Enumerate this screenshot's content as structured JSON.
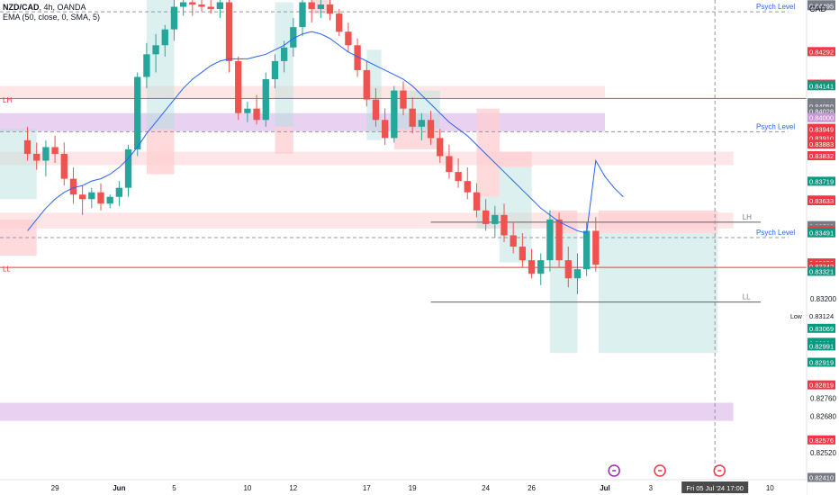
{
  "header": {
    "symbol": "NZD/CAD",
    "interval": ", 4h, ",
    "exchange": "OANDA",
    "indicator": "EMA (50, close, 0, SMA, 5)",
    "currency": "CAD"
  },
  "colors": {
    "up": "#26a69a",
    "down": "#ef5350",
    "ema": "#2962ff",
    "price_red": "#f23645",
    "price_green": "#089981",
    "zone_purple": "#d9b3e8",
    "zone_pink": "#ffd6d6",
    "box_green": "#b2dfdb",
    "box_red": "#ffcdd2"
  },
  "chart_data": {
    "type": "candlestick",
    "title": "NZD/CAD, 4h, OANDA",
    "ylim": [
      0.824,
      0.8452
    ],
    "xlim": [
      -3,
      85
    ],
    "x_ticks": [
      {
        "i": 3,
        "label": "29"
      },
      {
        "i": 10,
        "label": "Jun",
        "bold": true
      },
      {
        "i": 16,
        "label": "5"
      },
      {
        "i": 24,
        "label": "10"
      },
      {
        "i": 29,
        "label": "12"
      },
      {
        "i": 37,
        "label": "17"
      },
      {
        "i": 42,
        "label": "19"
      },
      {
        "i": 50,
        "label": "24"
      },
      {
        "i": 55,
        "label": "26"
      },
      {
        "i": 63,
        "label": "Jul",
        "bold": true
      },
      {
        "i": 68,
        "label": "3"
      },
      {
        "i": 81,
        "label": "10"
      }
    ],
    "crosshair": {
      "i": 75,
      "label": "Fri 05 Jul '24   17:00"
    },
    "y_ticks": [
      "0.83200",
      "0.82760",
      "0.82680",
      "0.82520"
    ],
    "axis_labels": [
      {
        "v": 0.84499,
        "t": "0.84499",
        "c": "#787b86"
      },
      {
        "v": 0.84495,
        "t": "0.84495",
        "c": "#787b86"
      },
      {
        "v": 0.84292,
        "t": "0.84292",
        "c": "#f23645"
      },
      {
        "v": 0.84148,
        "t": "0.84148",
        "c": "#f23645"
      },
      {
        "v": 0.84141,
        "t": "0.84141",
        "c": "#089981"
      },
      {
        "v": 0.84066,
        "t": "0.84066",
        "c": "#787b86"
      },
      {
        "v": 0.84063,
        "t": "0.84063",
        "c": "#787b86"
      },
      {
        "v": 0.84062,
        "t": "0.84062",
        "c": "#787b86"
      },
      {
        "v": 0.8405,
        "t": "0.84050",
        "c": "#787b86"
      },
      {
        "v": 0.84028,
        "t": "0.84028",
        "c": "#787b86"
      },
      {
        "v": 0.84,
        "t": "0.84000",
        "c": "#ce93d8"
      },
      {
        "v": 0.83953,
        "t": "0.83953",
        "c": "#f23645"
      },
      {
        "v": 0.8395,
        "t": "0.83950",
        "c": "#f23645"
      },
      {
        "v": 0.83949,
        "t": "0.83949",
        "c": "#f23645"
      },
      {
        "v": 0.8391,
        "t": "0.83910",
        "c": "#f23645"
      },
      {
        "v": 0.83883,
        "t": "0.83883",
        "c": "#f23645"
      },
      {
        "v": 0.83832,
        "t": "0.83832",
        "c": "#f23645"
      },
      {
        "v": 0.83719,
        "t": "0.83719",
        "c": "#089981"
      },
      {
        "v": 0.83636,
        "t": "0.83636",
        "c": "#f23645"
      },
      {
        "v": 0.83633,
        "t": "0.83633",
        "c": "#f23645"
      },
      {
        "v": 0.83523,
        "t": "0.83523",
        "c": "#787b86"
      },
      {
        "v": 0.8352,
        "t": "0.83520",
        "c": "#787b86"
      },
      {
        "v": 0.83506,
        "t": "0.83506",
        "c": "#787b86"
      },
      {
        "v": 0.835,
        "t": "0.83500",
        "c": "#f23645"
      },
      {
        "v": 0.83491,
        "t": "0.83491",
        "c": "#089981"
      },
      {
        "v": 0.83358,
        "t": "0.83358",
        "c": "#f23645"
      },
      {
        "v": 0.83344,
        "t": "0.83344",
        "c": "#f23645"
      },
      {
        "v": 0.83342,
        "t": "0.83342",
        "c": "#f23645"
      },
      {
        "v": 0.83321,
        "t": "0.83321",
        "c": "#089981"
      },
      {
        "v": 0.83124,
        "t": "0.83124",
        "c": "#ffffff",
        "tc": "#131722",
        "prefix": "Low"
      },
      {
        "v": 0.83069,
        "t": "0.83069",
        "c": "#089981"
      },
      {
        "v": 0.83007,
        "t": "0.83007",
        "c": "#089981"
      },
      {
        "v": 0.83004,
        "t": "0.83004",
        "c": "#089981"
      },
      {
        "v": 0.82991,
        "t": "0.82991",
        "c": "#089981"
      },
      {
        "v": 0.82919,
        "t": "0.82919",
        "c": "#089981"
      },
      {
        "v": 0.82819,
        "t": "0.82819",
        "c": "#f23645"
      },
      {
        "v": 0.82576,
        "t": "0.82576",
        "c": "#f23645"
      },
      {
        "v": 0.8241,
        "t": "0.82410",
        "c": "#787b86"
      }
    ],
    "zones": [
      {
        "i0": -3,
        "i1": 63,
        "y0": 0.8402,
        "y1": 0.8394,
        "color": "#d9b3e8",
        "op": 0.6
      },
      {
        "i0": -3,
        "i1": 77,
        "y0": 0.8274,
        "y1": 0.8266,
        "color": "#d9b3e8",
        "op": 0.6
      },
      {
        "i0": -3,
        "i1": 63,
        "y0": 0.8414,
        "y1": 0.8409,
        "color": "#ffd6d6",
        "op": 0.6
      },
      {
        "i0": -3,
        "i1": 77,
        "y0": 0.8385,
        "y1": 0.8379,
        "color": "#ffd6d6",
        "op": 0.6
      },
      {
        "i0": -3,
        "i1": 77,
        "y0": 0.8358,
        "y1": 0.8351,
        "color": "#ffd6d6",
        "op": 0.6
      },
      {
        "i0": -3,
        "i1": 1,
        "y0": 0.8395,
        "y1": 0.8364,
        "color": "#b2dfdb",
        "op": 0.45
      },
      {
        "i0": -3,
        "i1": 1,
        "y0": 0.8355,
        "y1": 0.8339,
        "color": "#ffcdd2",
        "op": 0.75
      },
      {
        "i0": 13,
        "i1": 16,
        "y0": 0.8452,
        "y1": 0.8395,
        "color": "#b2dfdb",
        "op": 0.45
      },
      {
        "i0": 13,
        "i1": 16,
        "y0": 0.8395,
        "y1": 0.8375,
        "color": "#ffcdd2",
        "op": 0.75
      },
      {
        "i0": 27,
        "i1": 29,
        "y0": 0.8451,
        "y1": 0.8396,
        "color": "#b2dfdb",
        "op": 0.45
      },
      {
        "i0": 27,
        "i1": 29,
        "y0": 0.8396,
        "y1": 0.8384,
        "color": "#ffcdd2",
        "op": 0.75
      },
      {
        "i0": 37,
        "i1": 38.6,
        "y0": 0.843,
        "y1": 0.839,
        "color": "#b2dfdb",
        "op": 0.45
      },
      {
        "i0": 40,
        "i1": 45,
        "y0": 0.8412,
        "y1": 0.8395,
        "color": "#b2dfdb",
        "op": 0.45
      },
      {
        "i0": 40,
        "i1": 45,
        "y0": 0.8395,
        "y1": 0.8386,
        "color": "#ffcdd2",
        "op": 0.75
      },
      {
        "i0": 31,
        "i1": 33,
        "y0": 0.8452,
        "y1": 0.8446,
        "color": "#ffcdd2",
        "op": 0.75
      },
      {
        "i0": 49,
        "i1": 51.5,
        "y0": 0.8404,
        "y1": 0.8365,
        "color": "#ffcdd2",
        "op": 0.75
      },
      {
        "i0": 49,
        "i1": 51.5,
        "y0": 0.8365,
        "y1": 0.8351,
        "color": "#b2dfdb",
        "op": 0.45
      },
      {
        "i0": 51.5,
        "i1": 55,
        "y0": 0.8385,
        "y1": 0.8378,
        "color": "#ffcdd2",
        "op": 0.75
      },
      {
        "i0": 51.5,
        "i1": 55,
        "y0": 0.8378,
        "y1": 0.8336,
        "color": "#b2dfdb",
        "op": 0.45
      },
      {
        "i0": 57,
        "i1": 60,
        "y0": 0.8359,
        "y1": 0.8349,
        "color": "#ffcdd2",
        "op": 0.75
      },
      {
        "i0": 57,
        "i1": 60,
        "y0": 0.8349,
        "y1": 0.8296,
        "color": "#b2dfdb",
        "op": 0.45
      },
      {
        "i0": 62.3,
        "i1": 75.3,
        "y0": 0.8359,
        "y1": 0.8349,
        "color": "#ffcdd2",
        "op": 0.75
      },
      {
        "i0": 62.3,
        "i1": 75.3,
        "y0": 0.8349,
        "y1": 0.8296,
        "color": "#b2dfdb",
        "op": 0.45
      }
    ],
    "hlines": [
      {
        "v": 0.84468,
        "i0": -3,
        "i1": 83,
        "color": "#9598a1",
        "dash": true
      },
      {
        "v": 0.83938,
        "i0": -3,
        "i1": 83,
        "color": "#9598a1",
        "dash": true
      },
      {
        "v": 0.8347,
        "i0": -3,
        "i1": 83,
        "color": "#9598a1",
        "dash": true
      },
      {
        "v": 0.84085,
        "i0": -3,
        "i1": 85,
        "color": "#f23645",
        "dash": false
      },
      {
        "v": 0.83338,
        "i0": -3,
        "i1": 85,
        "color": "#f23645",
        "dash": false
      },
      {
        "v": 0.83538,
        "i0": 44,
        "i1": 80,
        "color": "#5d606b",
        "dash": false
      },
      {
        "v": 0.83185,
        "i0": 44,
        "i1": 80,
        "color": "#5d606b",
        "dash": false
      }
    ],
    "texts": [
      {
        "t": "Psych Level",
        "i": 79.5,
        "v": 0.84468,
        "color": "#2962ff"
      },
      {
        "t": "Psych Level",
        "i": 79.5,
        "v": 0.83938,
        "color": "#2962ff"
      },
      {
        "t": "Psych Level",
        "i": 79.5,
        "v": 0.8347,
        "color": "#2962ff"
      },
      {
        "t": "LH",
        "i": -2.7,
        "v": 0.84055,
        "color": "#f23645"
      },
      {
        "t": "LL",
        "i": -2.7,
        "v": 0.83308,
        "color": "#f23645"
      },
      {
        "t": "LH",
        "i": 78.0,
        "v": 0.83538,
        "color": "#787b86"
      },
      {
        "t": "LL",
        "i": 78.0,
        "v": 0.83185,
        "color": "#787b86"
      }
    ],
    "ohlc": [
      [
        0.839,
        0.8396,
        0.8381,
        0.8384
      ],
      [
        0.8384,
        0.8389,
        0.8377,
        0.8381
      ],
      [
        0.8381,
        0.839,
        0.8374,
        0.8387
      ],
      [
        0.8387,
        0.8392,
        0.838,
        0.8384
      ],
      [
        0.8384,
        0.8389,
        0.837,
        0.8373
      ],
      [
        0.8373,
        0.8378,
        0.8362,
        0.8366
      ],
      [
        0.8366,
        0.837,
        0.8357,
        0.8364
      ],
      [
        0.8364,
        0.8369,
        0.836,
        0.8367
      ],
      [
        0.8367,
        0.8371,
        0.8359,
        0.8362
      ],
      [
        0.8362,
        0.8366,
        0.836,
        0.8365
      ],
      [
        0.8365,
        0.8372,
        0.8361,
        0.8369
      ],
      [
        0.8369,
        0.8388,
        0.8365,
        0.8386
      ],
      [
        0.8386,
        0.842,
        0.8383,
        0.8418
      ],
      [
        0.8418,
        0.8433,
        0.8413,
        0.8428
      ],
      [
        0.8428,
        0.8437,
        0.842,
        0.8432
      ],
      [
        0.8432,
        0.8441,
        0.8427,
        0.8439
      ],
      [
        0.8439,
        0.8452,
        0.8434,
        0.8449
      ],
      [
        0.8449,
        0.8452,
        0.8445,
        0.8451
      ],
      [
        0.8451,
        0.8452,
        0.8445,
        0.845
      ],
      [
        0.845,
        0.8452,
        0.8447,
        0.8449
      ],
      [
        0.8449,
        0.8452,
        0.8446,
        0.8448
      ],
      [
        0.8448,
        0.8452,
        0.8444,
        0.8451
      ],
      [
        0.8451,
        0.8452,
        0.842,
        0.8425
      ],
      [
        0.8425,
        0.8427,
        0.8399,
        0.8402
      ],
      [
        0.8402,
        0.8407,
        0.8398,
        0.8404
      ],
      [
        0.8404,
        0.841,
        0.8397,
        0.8399
      ],
      [
        0.8399,
        0.842,
        0.8396,
        0.8417
      ],
      [
        0.8417,
        0.8428,
        0.8413,
        0.8425
      ],
      [
        0.8425,
        0.8434,
        0.842,
        0.8431
      ],
      [
        0.8431,
        0.8444,
        0.8427,
        0.844
      ],
      [
        0.844,
        0.8452,
        0.8436,
        0.8451
      ],
      [
        0.8451,
        0.8452,
        0.8442,
        0.8448
      ],
      [
        0.8448,
        0.8452,
        0.8444,
        0.845
      ],
      [
        0.845,
        0.8452,
        0.8443,
        0.8446
      ],
      [
        0.8446,
        0.8448,
        0.8436,
        0.8438
      ],
      [
        0.8438,
        0.8442,
        0.8429,
        0.8432
      ],
      [
        0.8432,
        0.8435,
        0.8418,
        0.8421
      ],
      [
        0.8421,
        0.8425,
        0.8405,
        0.8408
      ],
      [
        0.8408,
        0.8413,
        0.8396,
        0.8399
      ],
      [
        0.8399,
        0.8404,
        0.8388,
        0.8391
      ],
      [
        0.8391,
        0.8414,
        0.8389,
        0.8412
      ],
      [
        0.8412,
        0.8416,
        0.8401,
        0.8404
      ],
      [
        0.8404,
        0.8409,
        0.8393,
        0.8396
      ],
      [
        0.8396,
        0.8402,
        0.839,
        0.8399
      ],
      [
        0.8399,
        0.8403,
        0.8388,
        0.8391
      ],
      [
        0.8391,
        0.8395,
        0.838,
        0.8383
      ],
      [
        0.8383,
        0.8388,
        0.8373,
        0.8376
      ],
      [
        0.8376,
        0.8382,
        0.8369,
        0.8372
      ],
      [
        0.8372,
        0.8378,
        0.8364,
        0.8367
      ],
      [
        0.8367,
        0.8371,
        0.8356,
        0.8359
      ],
      [
        0.8359,
        0.8364,
        0.835,
        0.8353
      ],
      [
        0.8353,
        0.8361,
        0.8347,
        0.8357
      ],
      [
        0.8357,
        0.8362,
        0.8345,
        0.8348
      ],
      [
        0.8348,
        0.8354,
        0.834,
        0.8343
      ],
      [
        0.8343,
        0.8349,
        0.8334,
        0.8337
      ],
      [
        0.8337,
        0.8342,
        0.8329,
        0.8331
      ],
      [
        0.8331,
        0.834,
        0.8326,
        0.8337
      ],
      [
        0.8337,
        0.8359,
        0.8332,
        0.8355
      ],
      [
        0.8355,
        0.8358,
        0.8334,
        0.8337
      ],
      [
        0.8337,
        0.8343,
        0.8325,
        0.8329
      ],
      [
        0.8329,
        0.834,
        0.8322,
        0.8333
      ],
      [
        0.8333,
        0.8354,
        0.833,
        0.835
      ],
      [
        0.835,
        0.8356,
        0.8332,
        0.8335
      ]
    ],
    "ema": [
      0.835,
      0.8355,
      0.836,
      0.8364,
      0.8367,
      0.8369,
      0.837,
      0.8372,
      0.8373,
      0.8375,
      0.8378,
      0.8382,
      0.8387,
      0.8393,
      0.8398,
      0.8403,
      0.8408,
      0.8413,
      0.8417,
      0.842,
      0.8423,
      0.8425,
      0.8426,
      0.8426,
      0.8426,
      0.8427,
      0.8428,
      0.843,
      0.8432,
      0.8435,
      0.8437,
      0.8438,
      0.8437,
      0.8435,
      0.8432,
      0.8429,
      0.8427,
      0.8425,
      0.8423,
      0.8421,
      0.8419,
      0.8417,
      0.8414,
      0.841,
      0.8406,
      0.8402,
      0.8398,
      0.8395,
      0.8392,
      0.8388,
      0.8384,
      0.838,
      0.8376,
      0.8372,
      0.8368,
      0.8364,
      0.836,
      0.8357,
      0.8354,
      0.8352,
      0.835,
      0.8349
    ],
    "ema_extra": [
      0.8381,
      0.8374,
      0.8369,
      0.8365
    ]
  }
}
